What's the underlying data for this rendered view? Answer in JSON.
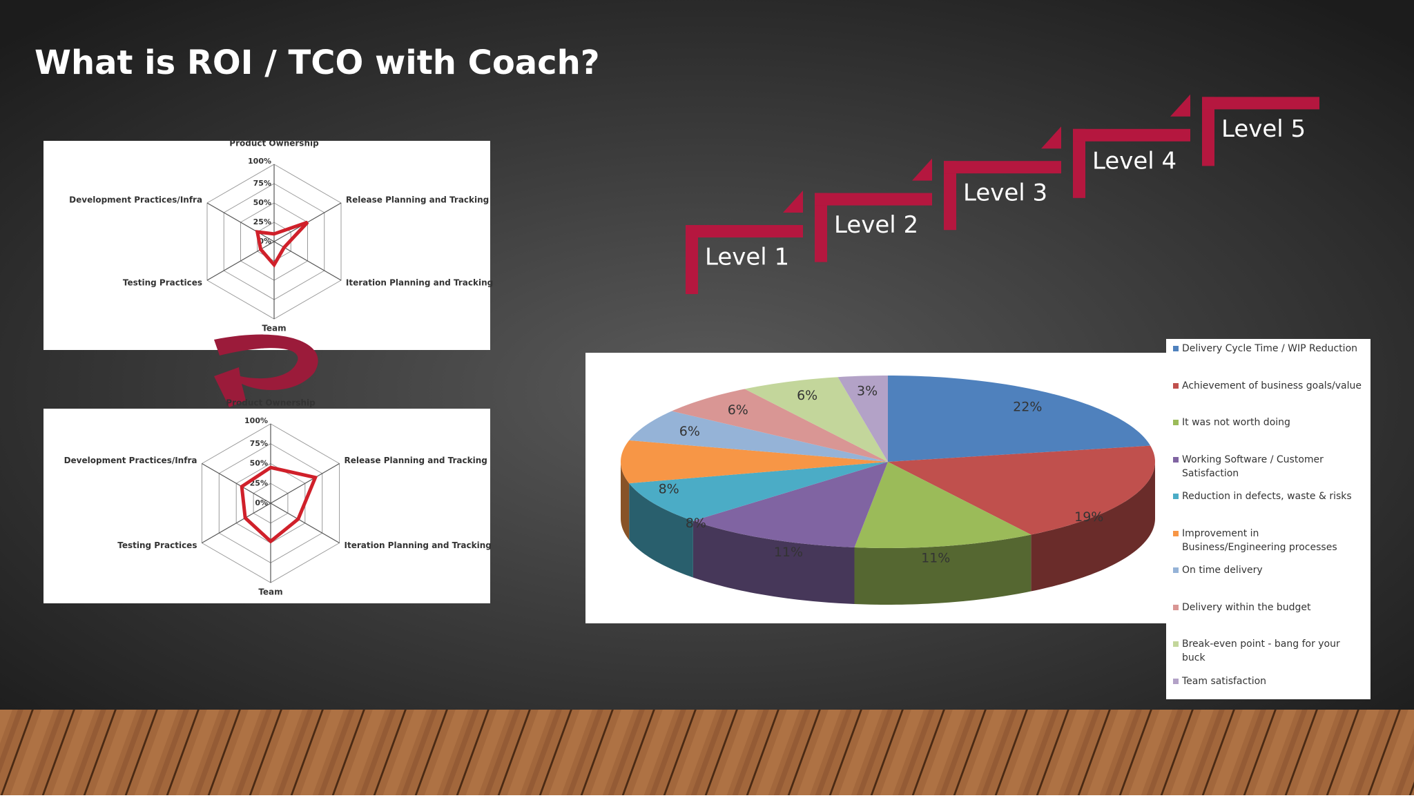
{
  "title": "What is ROI / TCO with Coach?",
  "levels": [
    "Level 1",
    "Level 2",
    "Level 3",
    "Level 4",
    "Level 5"
  ],
  "chart_data": [
    {
      "type": "radar",
      "categories": [
        "Product Ownership",
        "Release Planning and Tracking",
        "Iteration Planning and Tracking",
        "Team",
        "Testing Practices",
        "Development Practices/Infra"
      ],
      "values": [
        10,
        50,
        15,
        30,
        20,
        25
      ],
      "color": "#d0202a",
      "ylim": [
        0,
        100
      ],
      "yticks": [
        {
          "value": 0,
          "label": "0%"
        },
        {
          "value": 25,
          "label": "25%"
        },
        {
          "value": 50,
          "label": "50%"
        },
        {
          "value": 75,
          "label": "75%"
        },
        {
          "value": 100,
          "label": "100%"
        }
      ]
    },
    {
      "type": "radar",
      "categories": [
        "Product Ownership",
        "Release Planning and Tracking",
        "Iteration Planning and Tracking",
        "Team",
        "Testing Practices",
        "Development Practices/Infra"
      ],
      "values": [
        45,
        65,
        40,
        48,
        37,
        42
      ],
      "color": "#d0202a",
      "ylim": [
        0,
        100
      ],
      "yticks": [
        {
          "value": 0,
          "label": "0%"
        },
        {
          "value": 25,
          "label": "25%"
        },
        {
          "value": 50,
          "label": "50%"
        },
        {
          "value": 75,
          "label": "75%"
        },
        {
          "value": 100,
          "label": "100%"
        }
      ]
    },
    {
      "type": "pie",
      "categories": [
        "Delivery Cycle Time / WIP Reduction",
        "Achievement of business goals/value",
        "It was not worth doing",
        "Working Software / Customer Satisfaction",
        "Reduction in defects, waste & risks",
        "Improvement in Business/Engineering processes",
        "On time delivery",
        "Delivery within the budget",
        "Break-even point - bang for your buck",
        "Team satisfaction"
      ],
      "values": [
        22,
        19,
        11,
        11,
        8,
        8,
        6,
        6,
        6,
        3
      ],
      "value_labels": [
        "22%",
        "19%",
        "11%",
        "11%",
        "8%",
        "8%",
        "6%",
        "6%",
        "6%",
        "3%"
      ],
      "colors": [
        "#4f81bd",
        "#c0504d",
        "#9bbb59",
        "#8064a2",
        "#4bacc6",
        "#f79646",
        "#95b3d7",
        "#d99694",
        "#c3d69b",
        "#b3a2c7"
      ]
    }
  ]
}
